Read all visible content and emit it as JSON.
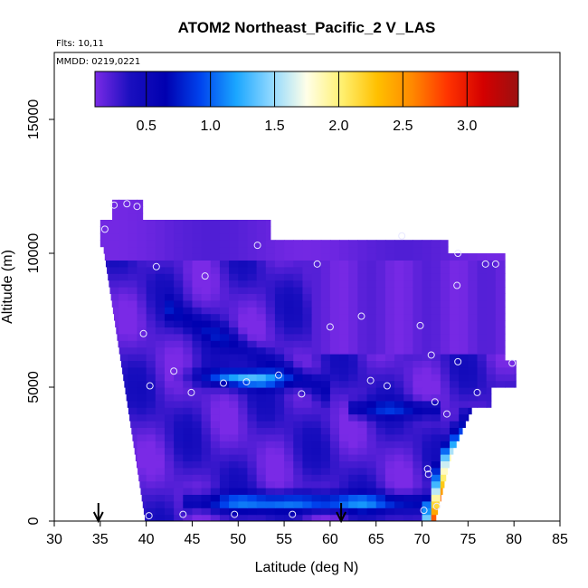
{
  "chart_data": {
    "type": "heatmap",
    "title": "ATOM2 Northeast_Pacific_2 V_LAS",
    "annotations": [
      "Flts: 10,11",
      "MMDD: 0219,0221"
    ],
    "xlabel": "Latitude (deg N)",
    "ylabel": "Altitude (m)",
    "xlim": [
      30,
      85
    ],
    "ylim": [
      0,
      17500
    ],
    "x_ticks": [
      "30",
      "35",
      "40",
      "45",
      "50",
      "55",
      "60",
      "65",
      "70",
      "75",
      "80",
      "85"
    ],
    "y_ticks": [
      "0",
      "5000",
      "10000",
      "15000"
    ],
    "colorbar": {
      "range": [
        0.1,
        3.4
      ],
      "tick_labels": [
        "0.5",
        "1.0",
        "1.5",
        "2.0",
        "2.5",
        "3.0"
      ],
      "colors": [
        "#7a2ae6",
        "#1a0fbf",
        "#0000b0",
        "#0044ee",
        "#1aa6ff",
        "#8fd8ff",
        "#ffffe8",
        "#fff070",
        "#ffc000",
        "#ff8800",
        "#ff3300",
        "#d40000",
        "#9b1010"
      ]
    },
    "profile_markers_lat": [
      34.8,
      61.2
    ],
    "sample_points": [
      {
        "lat": 36.5,
        "alt": 11800
      },
      {
        "lat": 37.9,
        "alt": 11850
      },
      {
        "lat": 39.0,
        "alt": 11750
      },
      {
        "lat": 35.5,
        "alt": 10900
      },
      {
        "lat": 52.1,
        "alt": 10300
      },
      {
        "lat": 67.8,
        "alt": 10650
      },
      {
        "lat": 73.9,
        "alt": 10000
      },
      {
        "lat": 76.9,
        "alt": 9600
      },
      {
        "lat": 78.0,
        "alt": 9600
      },
      {
        "lat": 41.1,
        "alt": 9500
      },
      {
        "lat": 46.4,
        "alt": 9150
      },
      {
        "lat": 58.6,
        "alt": 9600
      },
      {
        "lat": 73.8,
        "alt": 8800
      },
      {
        "lat": 63.4,
        "alt": 7650
      },
      {
        "lat": 60.0,
        "alt": 7250
      },
      {
        "lat": 69.8,
        "alt": 7300
      },
      {
        "lat": 39.7,
        "alt": 7000
      },
      {
        "lat": 71.0,
        "alt": 6200
      },
      {
        "lat": 73.9,
        "alt": 5950
      },
      {
        "lat": 79.8,
        "alt": 5900
      },
      {
        "lat": 43.0,
        "alt": 5600
      },
      {
        "lat": 54.4,
        "alt": 5450
      },
      {
        "lat": 48.4,
        "alt": 5150
      },
      {
        "lat": 50.9,
        "alt": 5200
      },
      {
        "lat": 64.4,
        "alt": 5250
      },
      {
        "lat": 66.2,
        "alt": 5050
      },
      {
        "lat": 40.4,
        "alt": 5050
      },
      {
        "lat": 44.9,
        "alt": 4800
      },
      {
        "lat": 56.9,
        "alt": 4750
      },
      {
        "lat": 76.0,
        "alt": 4800
      },
      {
        "lat": 71.4,
        "alt": 4450
      },
      {
        "lat": 72.7,
        "alt": 4000
      },
      {
        "lat": 70.6,
        "alt": 1950
      },
      {
        "lat": 70.7,
        "alt": 1750
      },
      {
        "lat": 40.3,
        "alt": 200
      },
      {
        "lat": 44.0,
        "alt": 250
      },
      {
        "lat": 49.6,
        "alt": 250
      },
      {
        "lat": 55.9,
        "alt": 250
      },
      {
        "lat": 70.2,
        "alt": 400
      },
      {
        "lat": 71.6,
        "alt": 550
      }
    ]
  }
}
